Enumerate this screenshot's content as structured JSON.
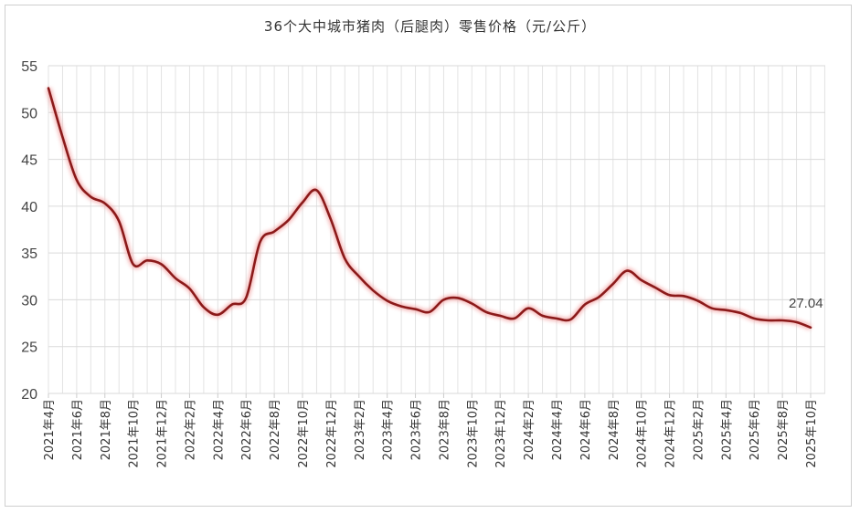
{
  "chart_data": {
    "type": "line",
    "title": "36个大中城市猪肉（后腿肉）零售价格（元/公斤）",
    "xlabel": "",
    "ylabel": "",
    "ylim": [
      20,
      55
    ],
    "yticks": [
      20,
      25,
      30,
      35,
      40,
      45,
      50,
      55
    ],
    "grid": true,
    "legend": null,
    "x": [
      "2021年4月",
      "2021年5月",
      "2021年6月",
      "2021年7月",
      "2021年8月",
      "2021年9月",
      "2021年10月",
      "2021年11月",
      "2021年12月",
      "2022年1月",
      "2022年2月",
      "2022年3月",
      "2022年4月",
      "2022年5月",
      "2022年6月",
      "2022年7月",
      "2022年8月",
      "2022年9月",
      "2022年10月",
      "2022年11月",
      "2022年12月",
      "2023年1月",
      "2023年2月",
      "2023年3月",
      "2023年4月",
      "2023年5月",
      "2023年6月",
      "2023年7月",
      "2023年8月",
      "2023年9月",
      "2023年10月",
      "2023年11月",
      "2023年12月",
      "2024年1月",
      "2024年2月",
      "2024年3月",
      "2024年4月",
      "2024年5月",
      "2024年6月",
      "2024年7月",
      "2024年8月",
      "2024年9月",
      "2024年10月",
      "2024年11月",
      "2024年12月",
      "2025年1月",
      "2025年2月",
      "2025年3月",
      "2025年4月",
      "2025年5月",
      "2025年6月",
      "2025年7月",
      "2025年8月",
      "2025年9月",
      "2025年10月"
    ],
    "tick_labels": [
      "2021年4月",
      "2021年6月",
      "2021年8月",
      "2021年10月",
      "2021年12月",
      "2022年2月",
      "2022年4月",
      "2022年6月",
      "2022年8月",
      "2022年10月",
      "2022年12月",
      "2023年2月",
      "2023年4月",
      "2023年6月",
      "2023年8月",
      "2023年10月",
      "2023年12月",
      "2024年2月",
      "2024年4月",
      "2024年6月",
      "2024年8月",
      "2024年10月",
      "2024年12月",
      "2025年2月",
      "2025年4月",
      "2025年6月",
      "2025年8月",
      "2025年10月"
    ],
    "series": [
      {
        "name": "36个大中城市猪肉（后腿肉）零售价格",
        "color": "#8b1a1a",
        "values": [
          52.6,
          47.4,
          42.8,
          41.0,
          40.3,
          38.4,
          33.8,
          34.2,
          33.8,
          32.3,
          31.2,
          29.2,
          28.4,
          29.5,
          30.2,
          36.2,
          37.3,
          38.5,
          40.4,
          41.7,
          38.6,
          34.4,
          32.5,
          31.0,
          29.9,
          29.3,
          29.0,
          28.7,
          30.0,
          30.2,
          29.6,
          28.7,
          28.3,
          28.0,
          29.1,
          28.3,
          28.0,
          27.9,
          29.5,
          30.3,
          31.7,
          33.1,
          32.1,
          31.3,
          30.5,
          30.4,
          29.9,
          29.1,
          28.9,
          28.6,
          28.0,
          27.8,
          27.8,
          27.6,
          27.04
        ]
      }
    ],
    "annotations": [
      {
        "x": "2025年10月",
        "text": "27.04"
      }
    ]
  },
  "title": "36个大中城市猪肉（后腿肉）零售价格（元/公斤）"
}
